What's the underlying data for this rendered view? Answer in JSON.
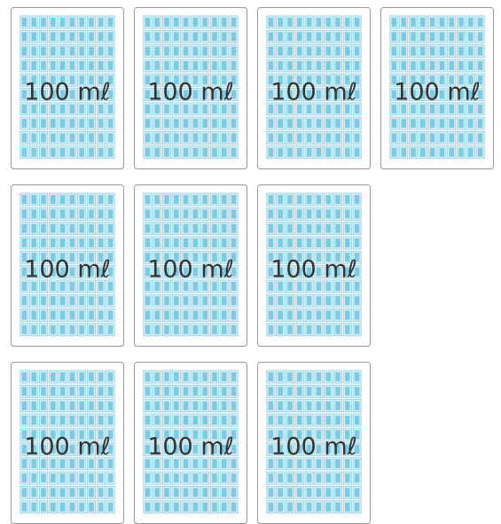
{
  "cards": [
    {
      "label": "100 mℓ"
    },
    {
      "label": "100 mℓ"
    },
    {
      "label": "100 mℓ"
    },
    {
      "label": "100 mℓ"
    },
    {
      "label": "100 mℓ"
    },
    {
      "label": "100 mℓ"
    },
    {
      "label": "100 mℓ"
    },
    {
      "label": "100 mℓ"
    },
    {
      "label": "100 mℓ"
    },
    {
      "label": "100 mℓ"
    }
  ]
}
